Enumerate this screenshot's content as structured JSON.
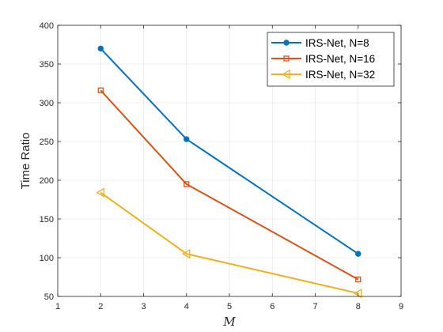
{
  "chart_data": {
    "type": "line",
    "xlabel": "M",
    "ylabel": "Time Ratio",
    "xlim": [
      1,
      9
    ],
    "ylim": [
      50,
      400
    ],
    "xticks": [
      1,
      2,
      3,
      4,
      5,
      6,
      7,
      8,
      9
    ],
    "yticks": [
      50,
      100,
      150,
      200,
      250,
      300,
      350,
      400
    ],
    "grid": true,
    "legend_position": "top-right",
    "series": [
      {
        "name": "IRS-Net, N=8",
        "x": [
          2,
          4,
          8
        ],
        "y": [
          370,
          253,
          105
        ],
        "color": "#0072BD",
        "marker": "circle"
      },
      {
        "name": "IRS-Net, N=16",
        "x": [
          2,
          4,
          8
        ],
        "y": [
          316,
          195,
          72
        ],
        "color": "#D95319",
        "marker": "square"
      },
      {
        "name": "IRS-Net, N=32",
        "x": [
          2,
          4,
          8
        ],
        "y": [
          184,
          105,
          54
        ],
        "color": "#EDB120",
        "marker": "triangle-left"
      }
    ]
  }
}
